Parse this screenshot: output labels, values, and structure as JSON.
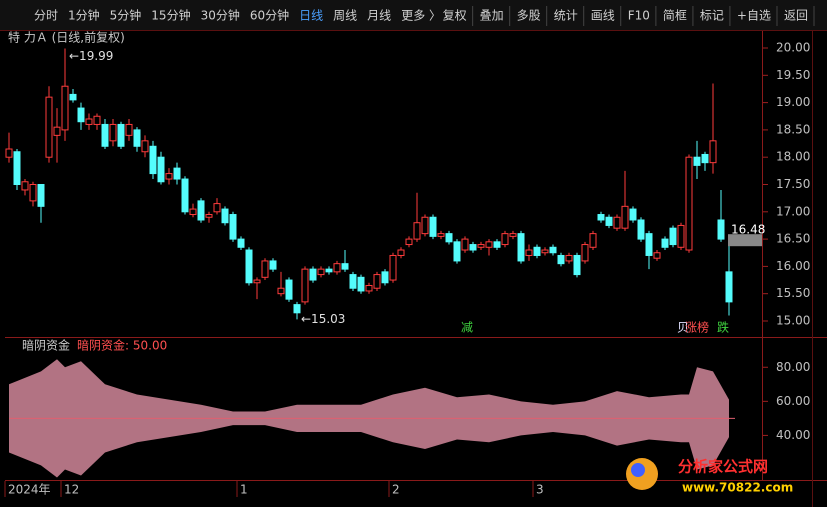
{
  "toolbar": {
    "left": [
      "分时",
      "1分钟",
      "5分钟",
      "15分钟",
      "30分钟",
      "60分钟",
      "日线",
      "周线",
      "月线",
      "更多 〉"
    ],
    "active": 6,
    "right": [
      "复权",
      "叠加",
      "多股",
      "统计",
      "画线",
      "F10",
      "简框",
      "标记",
      "+自选",
      "返回"
    ]
  },
  "watermark": {
    "title": "分析家公式网",
    "url": "www.70822.com"
  },
  "chart_data": [
    {
      "type": "candlestick",
      "title": "特 力Ａ (日线,前复权)",
      "up_color": "#ff3c3c",
      "down_color": "#54fcfc",
      "ylim": [
        14.78,
        20.22
      ],
      "yticks": [
        {
          "value": 15,
          "label": "15.00"
        },
        {
          "value": 15.5,
          "label": "15.50"
        },
        {
          "value": 16,
          "label": "16.00"
        },
        {
          "value": 16.5,
          "label": "16.50"
        },
        {
          "value": 17,
          "label": "17.00"
        },
        {
          "value": 17.5,
          "label": "17.50"
        },
        {
          "value": 18,
          "label": "18.00"
        },
        {
          "value": 18.5,
          "label": "18.50"
        },
        {
          "value": 19,
          "label": "19.00"
        },
        {
          "value": 19.5,
          "label": "19.50"
        },
        {
          "value": 20,
          "label": "20.00"
        }
      ],
      "xticks": [
        {
          "value": 0,
          "label": "2024年"
        },
        {
          "value": 7,
          "label": "12"
        },
        {
          "value": 29,
          "label": "1"
        },
        {
          "value": 48,
          "label": "2"
        },
        {
          "value": 66,
          "label": "3"
        }
      ],
      "open": [
        18.0,
        18.1,
        17.4,
        17.2,
        17.5,
        18.0,
        18.4,
        18.5,
        19.15,
        18.9,
        18.6,
        18.6,
        18.6,
        18.3,
        18.6,
        18.4,
        18.5,
        18.1,
        18.2,
        18.0,
        17.6,
        17.8,
        17.6,
        16.95,
        17.2,
        16.9,
        17.0,
        17.05,
        16.95,
        16.5,
        16.3,
        15.7,
        15.8,
        16.1,
        15.5,
        15.75,
        15.3,
        15.35,
        15.95,
        15.85,
        15.95,
        15.9,
        16.05,
        15.85,
        15.8,
        15.55,
        15.6,
        15.9,
        15.75,
        16.2,
        16.4,
        16.5,
        16.6,
        16.9,
        16.55,
        16.6,
        16.45,
        16.3,
        16.4,
        16.35,
        16.35,
        16.45,
        16.4,
        16.55,
        16.6,
        16.2,
        16.35,
        16.25,
        16.35,
        16.2,
        16.1,
        16.2,
        16.1,
        16.35,
        16.95,
        16.9,
        16.7,
        16.7,
        17.05,
        16.85,
        16.6,
        16.15,
        16.5,
        16.7,
        16.35,
        16.3,
        18.0,
        18.05,
        17.9,
        16.85,
        15.9
      ],
      "high": [
        18.45,
        18.15,
        17.6,
        17.55,
        17.5,
        19.3,
        18.9,
        19.99,
        19.25,
        19.0,
        18.8,
        18.8,
        18.7,
        18.7,
        18.65,
        18.7,
        18.55,
        18.4,
        18.3,
        18.1,
        17.8,
        17.9,
        17.65,
        17.15,
        17.25,
        17.0,
        17.25,
        17.1,
        17.0,
        16.55,
        16.35,
        15.8,
        16.15,
        16.15,
        15.9,
        15.8,
        15.35,
        16.0,
        16.0,
        16.0,
        16.0,
        16.1,
        16.3,
        15.9,
        15.85,
        15.7,
        15.9,
        15.95,
        16.25,
        16.35,
        16.55,
        17.35,
        16.95,
        16.95,
        16.65,
        16.65,
        16.5,
        16.55,
        16.45,
        16.45,
        16.5,
        16.5,
        16.65,
        16.65,
        16.65,
        16.4,
        16.4,
        16.35,
        16.4,
        16.25,
        16.25,
        16.25,
        16.45,
        16.65,
        17.0,
        16.95,
        16.95,
        17.75,
        17.1,
        16.9,
        16.65,
        16.3,
        16.55,
        16.75,
        16.8,
        18.05,
        18.3,
        18.1,
        19.35,
        17.4,
        16.5
      ],
      "low": [
        17.9,
        17.4,
        17.3,
        17.1,
        16.8,
        17.9,
        17.9,
        18.3,
        19.0,
        18.5,
        18.5,
        18.5,
        18.15,
        18.2,
        18.15,
        18.3,
        18.1,
        18.0,
        17.6,
        17.5,
        17.5,
        17.5,
        16.95,
        16.9,
        16.8,
        16.8,
        16.95,
        16.75,
        16.45,
        16.3,
        15.65,
        15.4,
        15.75,
        15.9,
        15.45,
        15.35,
        15.03,
        15.3,
        15.7,
        15.8,
        15.85,
        15.85,
        15.9,
        15.55,
        15.5,
        15.5,
        15.55,
        15.65,
        15.7,
        16.15,
        16.35,
        16.45,
        16.55,
        16.5,
        16.5,
        16.4,
        16.05,
        16.25,
        16.25,
        16.3,
        16.2,
        16.3,
        16.35,
        16.5,
        16.05,
        16.1,
        16.15,
        16.2,
        16.2,
        16.0,
        16.05,
        15.8,
        16.05,
        16.3,
        16.8,
        16.7,
        16.65,
        16.65,
        16.8,
        16.45,
        15.95,
        16.1,
        16.3,
        16.35,
        16.3,
        16.25,
        17.6,
        17.75,
        17.7,
        16.45,
        15.1
      ],
      "close": [
        18.15,
        17.5,
        17.55,
        17.5,
        17.1,
        19.1,
        18.55,
        19.3,
        19.05,
        18.65,
        18.7,
        18.75,
        18.2,
        18.6,
        18.2,
        18.6,
        18.2,
        18.3,
        17.7,
        17.55,
        17.7,
        17.6,
        17.0,
        17.05,
        16.85,
        16.95,
        17.15,
        16.8,
        16.5,
        16.35,
        15.7,
        15.75,
        16.1,
        15.95,
        15.6,
        15.4,
        15.15,
        15.95,
        15.75,
        15.95,
        15.9,
        16.05,
        15.95,
        15.6,
        15.55,
        15.65,
        15.85,
        15.7,
        16.2,
        16.3,
        16.5,
        16.8,
        16.9,
        16.55,
        16.6,
        16.45,
        16.1,
        16.5,
        16.3,
        16.4,
        16.45,
        16.35,
        16.6,
        16.6,
        16.1,
        16.3,
        16.2,
        16.3,
        16.25,
        16.05,
        16.2,
        15.85,
        16.4,
        16.6,
        16.85,
        16.75,
        16.9,
        17.1,
        16.85,
        16.5,
        16.2,
        16.25,
        16.35,
        16.4,
        16.75,
        18.0,
        17.85,
        17.9,
        18.3,
        16.5,
        15.35
      ],
      "annotations": [
        {
          "index": 7,
          "value": 19.99
        },
        {
          "index": 36,
          "value": 15.03
        }
      ],
      "price_label": 16.48,
      "signals": [
        {
          "index": 57,
          "text": "减",
          "color": "#3fd23f"
        },
        {
          "index": 84,
          "text": "贝",
          "color": "#e0e0ff"
        },
        {
          "index": 85,
          "text": "涨榜",
          "color": "#ff5050"
        },
        {
          "index": 89,
          "text": "跌",
          "color": "#3fd23f"
        }
      ]
    },
    {
      "type": "area",
      "title": "暗阴资金",
      "legend_label": "暗阴资金: 50.00",
      "color": "#b27383",
      "midline": 50,
      "midline_color": "#e06070",
      "ylim": [
        15,
        96
      ],
      "yticks": [
        {
          "value": 40,
          "label": "40.00"
        },
        {
          "value": 60,
          "label": "60.00"
        },
        {
          "value": 80,
          "label": "80.00"
        }
      ],
      "x": [
        0,
        4,
        6,
        7,
        9,
        12,
        16,
        20,
        24,
        28,
        32,
        36,
        40,
        44,
        48,
        52,
        56,
        60,
        64,
        68,
        72,
        76,
        80,
        84,
        85,
        86,
        88,
        90
      ],
      "series": [
        {
          "name": "upper",
          "values": [
            70,
            77.6,
            84.7,
            80,
            83.5,
            70,
            64,
            61,
            58,
            54,
            54,
            58,
            58,
            58,
            64,
            68,
            62.4,
            64,
            60,
            58,
            60,
            66,
            62.4,
            64,
            64,
            80,
            77.6,
            61
          ]
        },
        {
          "name": "lower",
          "values": [
            30,
            22.4,
            15.3,
            20,
            16.5,
            30,
            36,
            39,
            42,
            46,
            46,
            42,
            42,
            42,
            36,
            32,
            37.6,
            36,
            40,
            42,
            40,
            34,
            37.6,
            36,
            36,
            20,
            22.4,
            39
          ]
        }
      ]
    }
  ]
}
